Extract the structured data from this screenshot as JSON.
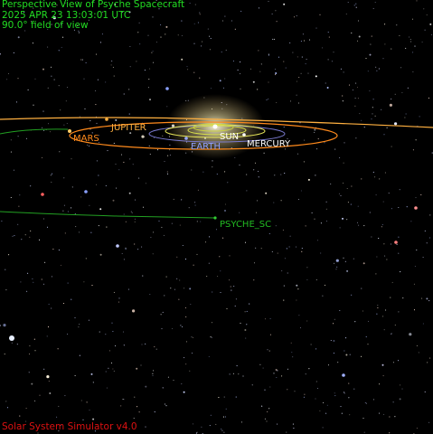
{
  "header": {
    "title": "Perspective View of Psyche Spacecraft",
    "timestamp": "2025 APR 23 13:03:01 UTC",
    "fov": "90.0° field of view"
  },
  "labels": {
    "jupiter": "JUPITER",
    "mars": "MARS",
    "sun": "SUN",
    "earth": "EARTH",
    "mercury": "MERCURY",
    "psyche": "PSYCHE_SC"
  },
  "footer": {
    "app_name": "Solar System Simulator v4.0"
  },
  "colors": {
    "hud_text": "#22dd22",
    "footer_text": "#dd1111",
    "jupiter": "#ffb040",
    "mars": "#ff8a1c",
    "sun": "#ffffff",
    "earth": "#8f9fff",
    "mercury": "#ffffff",
    "psyche": "#22bb22",
    "sun_glow": "#f4e6a8",
    "inner_orbits": "#e7e65a"
  }
}
